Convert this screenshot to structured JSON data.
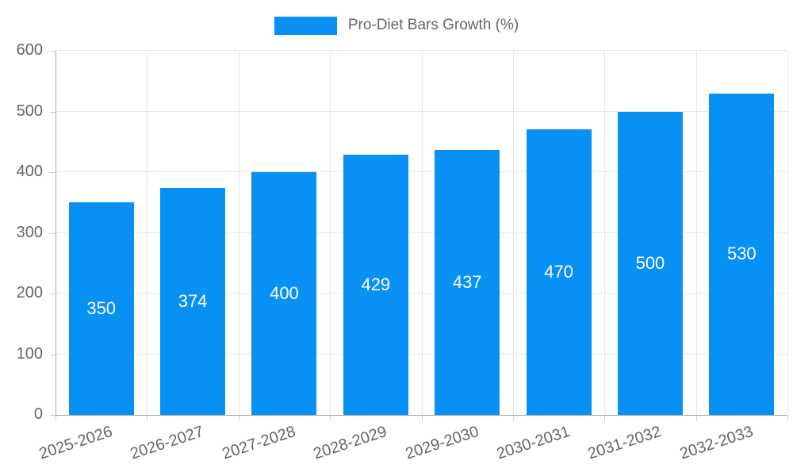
{
  "legend": {
    "label": "Pro-Diet Bars Growth (%)"
  },
  "colors": {
    "bar": "#0890f5",
    "grid": "#e6e6e6",
    "axis": "#a8a8a8",
    "tick": "#cfcfcf",
    "tick_text": "#666666",
    "value_label": "#ffffff",
    "background": "#ffffff"
  },
  "chart_data": {
    "type": "bar",
    "title": "Pro-Diet Bars Growth (%)",
    "categories": [
      "2025-2026",
      "2026-2027",
      "2027-2028",
      "2028-2029",
      "2029-2030",
      "2030-2031",
      "2031-2032",
      "2032-2033"
    ],
    "values": [
      350,
      374,
      400,
      429,
      437,
      470,
      500,
      530
    ],
    "xlabel": "",
    "ylabel": "",
    "ylim": [
      0,
      600
    ],
    "yticks": [
      0,
      100,
      200,
      300,
      400,
      500,
      600
    ],
    "grid": true,
    "legend_position": "top-center",
    "value_labels": "inside-center",
    "x_label_rotation_deg": -18
  }
}
